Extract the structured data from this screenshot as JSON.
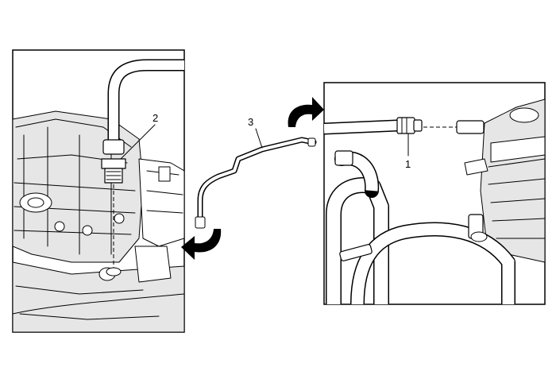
{
  "diagram": {
    "callouts": [
      {
        "id": "1",
        "text": "1"
      },
      {
        "id": "2",
        "text": "2"
      },
      {
        "id": "3",
        "text": "3"
      }
    ],
    "colors": {
      "line": "#000000",
      "background": "#ffffff",
      "arrow": "#000000"
    }
  }
}
